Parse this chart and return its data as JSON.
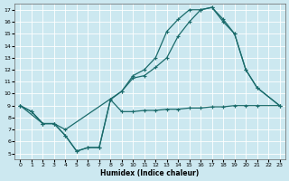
{
  "xlabel": "Humidex (Indice chaleur)",
  "bg_color": "#cce8f0",
  "grid_color": "#b0d8e8",
  "line_color": "#1a6b6b",
  "xlim": [
    -0.5,
    23.5
  ],
  "ylim": [
    4.5,
    17.5
  ],
  "xticks": [
    0,
    1,
    2,
    3,
    4,
    5,
    6,
    7,
    8,
    9,
    10,
    11,
    12,
    13,
    14,
    15,
    16,
    17,
    18,
    19,
    20,
    21,
    22,
    23
  ],
  "yticks": [
    5,
    6,
    7,
    8,
    9,
    10,
    11,
    12,
    13,
    14,
    15,
    16,
    17
  ],
  "line1_x": [
    0,
    1,
    2,
    3,
    4,
    5,
    6,
    7,
    8,
    9,
    10,
    11,
    12,
    13,
    14,
    15,
    16,
    17,
    18,
    19,
    20,
    21,
    23
  ],
  "line1_y": [
    9.0,
    8.5,
    7.5,
    7.5,
    6.5,
    5.2,
    5.5,
    5.5,
    9.5,
    10.2,
    11.5,
    12.0,
    13.0,
    15.2,
    16.2,
    17.0,
    17.0,
    17.2,
    16.2,
    15.0,
    12.0,
    10.5,
    9.0
  ],
  "line2_x": [
    0,
    2,
    3,
    4,
    9,
    10,
    11,
    12,
    13,
    14,
    15,
    16,
    17,
    18,
    19,
    20,
    21,
    23
  ],
  "line2_y": [
    9.0,
    7.5,
    7.5,
    7.0,
    10.2,
    11.3,
    11.5,
    12.2,
    13.0,
    14.8,
    16.0,
    17.0,
    17.2,
    16.0,
    15.0,
    12.0,
    10.5,
    9.0
  ],
  "line3_x": [
    0,
    1,
    2,
    3,
    4,
    5,
    6,
    7,
    8,
    9,
    10,
    11,
    12,
    13,
    14,
    15,
    16,
    17,
    18,
    19,
    20,
    21,
    23
  ],
  "line3_y": [
    9.0,
    8.5,
    7.5,
    7.5,
    6.5,
    5.2,
    5.5,
    5.5,
    9.5,
    8.5,
    8.5,
    8.6,
    8.6,
    8.7,
    8.7,
    8.8,
    8.8,
    8.9,
    8.9,
    9.0,
    9.0,
    9.0,
    9.0
  ]
}
